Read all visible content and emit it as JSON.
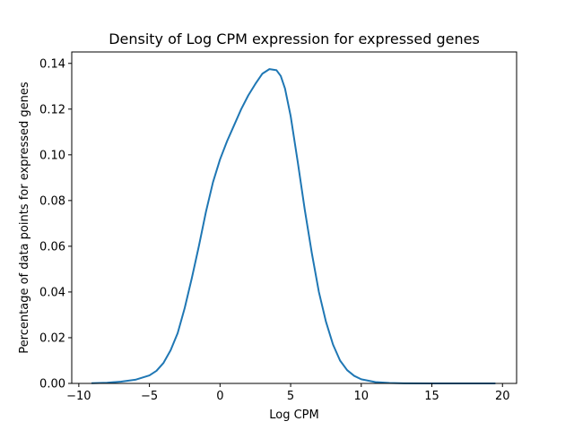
{
  "chart_data": {
    "type": "line",
    "title": "Density of Log CPM expression for expressed genes",
    "xlabel": "Log CPM",
    "ylabel": "Percentage of data points for expressed genes",
    "xlim": [
      -10.5,
      21
    ],
    "ylim": [
      0,
      0.145
    ],
    "xticks": [
      -10,
      -5,
      0,
      5,
      10,
      15,
      20
    ],
    "xtick_labels": [
      "−10",
      "−5",
      "0",
      "5",
      "10",
      "15",
      "20"
    ],
    "yticks": [
      0.0,
      0.02,
      0.04,
      0.06,
      0.08,
      0.1,
      0.12,
      0.14
    ],
    "ytick_labels": [
      "0.00",
      "0.02",
      "0.04",
      "0.06",
      "0.08",
      "0.10",
      "0.12",
      "0.14"
    ],
    "grid": false,
    "legend": "none",
    "series": [
      {
        "color": "#1f77b4",
        "x": [
          -9.1,
          -8,
          -7,
          -6,
          -5,
          -4.5,
          -4,
          -3.5,
          -3,
          -2.5,
          -2,
          -1.5,
          -1,
          -0.5,
          0,
          0.5,
          1,
          1.5,
          2,
          2.5,
          3,
          3.5,
          4,
          4.3,
          4.6,
          5,
          5.5,
          6,
          6.5,
          7,
          7.5,
          8,
          8.5,
          9,
          9.5,
          10,
          11,
          12,
          13,
          15,
          17,
          19.5
        ],
        "y": [
          0.0001,
          0.0003,
          0.0008,
          0.0016,
          0.0035,
          0.0055,
          0.009,
          0.0145,
          0.022,
          0.033,
          0.046,
          0.06,
          0.075,
          0.088,
          0.098,
          0.106,
          0.113,
          0.12,
          0.126,
          0.131,
          0.1355,
          0.1375,
          0.137,
          0.1345,
          0.129,
          0.117,
          0.097,
          0.076,
          0.057,
          0.04,
          0.027,
          0.017,
          0.01,
          0.0058,
          0.0033,
          0.0018,
          0.0006,
          0.0002,
          5e-05,
          0.0,
          0.0,
          0.0
        ]
      }
    ]
  }
}
